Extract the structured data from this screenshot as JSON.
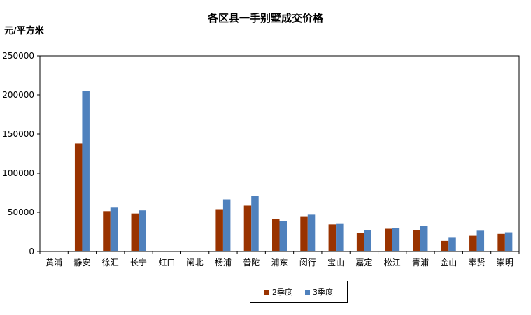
{
  "chart_data": {
    "type": "bar",
    "title": "各区县一手别墅成交价格",
    "ylabel": "元/平方米",
    "xlabel": "",
    "ylim": [
      0,
      250000
    ],
    "yticks": [
      0,
      50000,
      100000,
      150000,
      200000,
      250000
    ],
    "grid": false,
    "legend_position": "bottom",
    "categories": [
      "黄浦",
      "静安",
      "徐汇",
      "长宁",
      "虹口",
      "闸北",
      "杨浦",
      "普陀",
      "浦东",
      "闵行",
      "宝山",
      "嘉定",
      "松江",
      "青浦",
      "金山",
      "奉贤",
      "崇明"
    ],
    "series": [
      {
        "name": "2季度",
        "color": "#993300",
        "values": [
          0,
          138000,
          51500,
          48500,
          0,
          0,
          54000,
          58500,
          41500,
          45000,
          34500,
          23500,
          29000,
          27000,
          13500,
          20000,
          22500
        ]
      },
      {
        "name": "3季度",
        "color": "#4F81BD",
        "values": [
          0,
          205000,
          56000,
          52500,
          0,
          0,
          66500,
          71000,
          39000,
          47000,
          36000,
          27500,
          30000,
          32500,
          17500,
          26500,
          24500
        ]
      }
    ]
  }
}
